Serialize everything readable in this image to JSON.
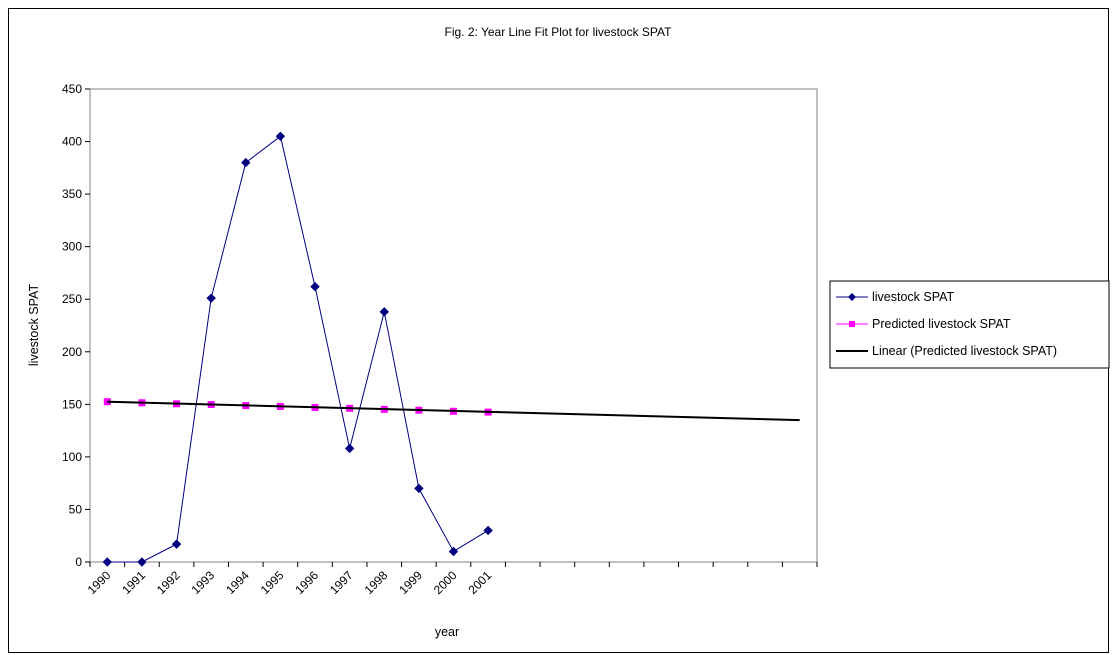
{
  "chart_data": {
    "type": "line",
    "title": "Fig. 2: Year Line Fit  Plot for livestock SPAT",
    "xlabel": "year",
    "ylabel": "livestock SPAT",
    "ylim": [
      0,
      450
    ],
    "y_ticks": [
      0,
      50,
      100,
      150,
      200,
      250,
      300,
      350,
      400,
      450
    ],
    "categories": [
      "1990",
      "1991",
      "1992",
      "1993",
      "1994",
      "1995",
      "1996",
      "1997",
      "1998",
      "1999",
      "2000",
      "2001"
    ],
    "category_slots": 21,
    "grid": false,
    "legend_position": "right",
    "series": [
      {
        "name": "livestock SPAT",
        "color": "#000080",
        "marker": "diamond",
        "values": [
          0,
          0,
          17,
          251,
          380,
          405,
          262,
          108,
          238,
          70,
          10,
          30
        ]
      },
      {
        "name": "Predicted livestock SPAT",
        "color": "#ff00ff",
        "marker": "square",
        "line": false,
        "values": [
          152.5,
          151.5,
          150.5,
          149.8,
          148.8,
          148.0,
          147.0,
          146.2,
          145.2,
          144.4,
          143.4,
          142.6
        ]
      },
      {
        "name": "Linear (Predicted livestock SPAT)",
        "color": "#000000",
        "marker": "none",
        "trend_from": [
          1,
          152.5
        ],
        "trend_to": [
          21,
          135
        ]
      }
    ]
  }
}
